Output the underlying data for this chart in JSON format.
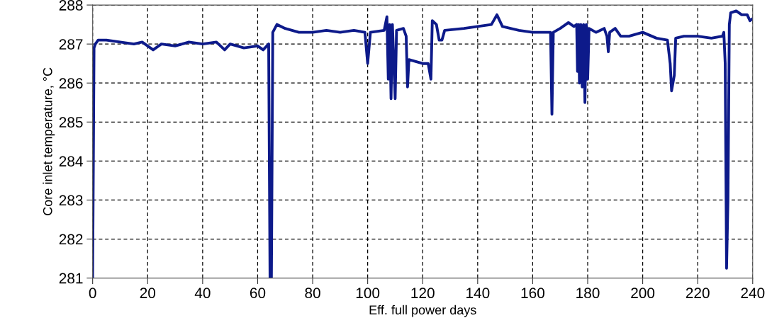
{
  "chart_data": {
    "type": "line",
    "xlabel": "Eff. full power days",
    "ylabel": "Core inlet temperature, °C",
    "xlim": [
      0,
      240
    ],
    "ylim": [
      281,
      288
    ],
    "xticks": [
      0,
      20,
      40,
      60,
      80,
      100,
      120,
      140,
      160,
      180,
      200,
      220,
      240
    ],
    "yticks": [
      281,
      282,
      283,
      284,
      285,
      286,
      287,
      288
    ],
    "grid": true,
    "line_style": "solid",
    "marker": "none",
    "series": [
      {
        "color": "#0d1a8a",
        "x": [
          0,
          0.5,
          1,
          2,
          5,
          10,
          15,
          18,
          20,
          22,
          25,
          30,
          35,
          40,
          45,
          48,
          50,
          55,
          60,
          62,
          64,
          64.5,
          65,
          65.5,
          67,
          70,
          75,
          80,
          85,
          90,
          95,
          99,
          100,
          101,
          106,
          107,
          107.5,
          108,
          108.5,
          109,
          110,
          110.5,
          113,
          114,
          114.5,
          115,
          120,
          122,
          123,
          123.5,
          125,
          126,
          127,
          128,
          135,
          140,
          145,
          147,
          149,
          155,
          160,
          165,
          166.5,
          167,
          167.5,
          170,
          173,
          175,
          176,
          176.3,
          176.7,
          177,
          177.5,
          178,
          178.5,
          179,
          179.5,
          180,
          180.5,
          183,
          186,
          187,
          187.5,
          188,
          190,
          192,
          195,
          200,
          205,
          209,
          210,
          210.5,
          211.5,
          212,
          215,
          220,
          225,
          229,
          229.5,
          230,
          230.5,
          231,
          231.5,
          232,
          234,
          236,
          238,
          239,
          240
        ],
        "values": [
          281,
          286.9,
          287.0,
          287.1,
          287.1,
          287.05,
          287.0,
          287.05,
          286.95,
          286.85,
          287.0,
          286.95,
          287.05,
          287.0,
          287.05,
          286.85,
          287.0,
          286.9,
          286.95,
          286.85,
          287.0,
          281,
          281,
          287.3,
          287.5,
          287.4,
          287.3,
          287.3,
          287.35,
          287.3,
          287.35,
          287.3,
          286.5,
          287.3,
          287.35,
          287.7,
          286.1,
          287.5,
          285.6,
          287.5,
          285.6,
          287.35,
          287.4,
          287.2,
          285.9,
          286.6,
          286.5,
          286.5,
          286.1,
          287.6,
          287.5,
          287.1,
          287.1,
          287.35,
          287.4,
          287.45,
          287.5,
          287.75,
          287.45,
          287.35,
          287.3,
          287.3,
          287.3,
          285.2,
          287.3,
          287.4,
          287.55,
          287.45,
          287.5,
          286.3,
          287.5,
          286.0,
          287.5,
          285.9,
          287.5,
          285.5,
          287.5,
          286.1,
          287.4,
          287.3,
          287.4,
          287.2,
          286.8,
          287.3,
          287.4,
          287.2,
          287.2,
          287.3,
          287.15,
          287.1,
          286.5,
          285.8,
          286.2,
          287.15,
          287.2,
          287.2,
          287.15,
          287.2,
          287.3,
          286.5,
          281.25,
          283.0,
          287.5,
          287.8,
          287.85,
          287.75,
          287.75,
          287.6,
          287.65
        ]
      }
    ]
  }
}
